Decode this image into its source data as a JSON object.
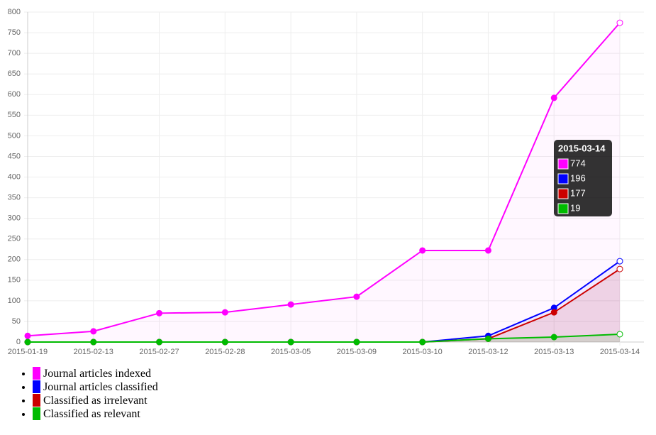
{
  "chart_data": {
    "type": "line",
    "categories": [
      "2015-01-19",
      "2015-02-13",
      "2015-02-27",
      "2015-02-28",
      "2015-03-05",
      "2015-03-09",
      "2015-03-10",
      "2015-03-12",
      "2015-03-13",
      "2015-03-14"
    ],
    "series": [
      {
        "name": "Journal articles indexed",
        "color": "#ff00ff",
        "values": [
          15,
          26,
          70,
          72,
          91,
          110,
          222,
          222,
          592,
          774
        ]
      },
      {
        "name": "Journal articles classified",
        "color": "#0000ff",
        "values": [
          0,
          0,
          0,
          0,
          0,
          0,
          0,
          15,
          83,
          196
        ]
      },
      {
        "name": "Classified as irrelevant",
        "color": "#cc0000",
        "values": [
          0,
          0,
          0,
          0,
          0,
          0,
          0,
          8,
          72,
          177
        ]
      },
      {
        "name": "Classified as relevant",
        "color": "#00bb00",
        "values": [
          0,
          0,
          0,
          0,
          0,
          0,
          0,
          8,
          12,
          19
        ]
      }
    ],
    "ylim": [
      0,
      800
    ],
    "yticks": [
      0,
      50,
      100,
      150,
      200,
      250,
      300,
      350,
      400,
      450,
      500,
      550,
      600,
      650,
      700,
      750,
      800
    ],
    "grid": true
  }
}
